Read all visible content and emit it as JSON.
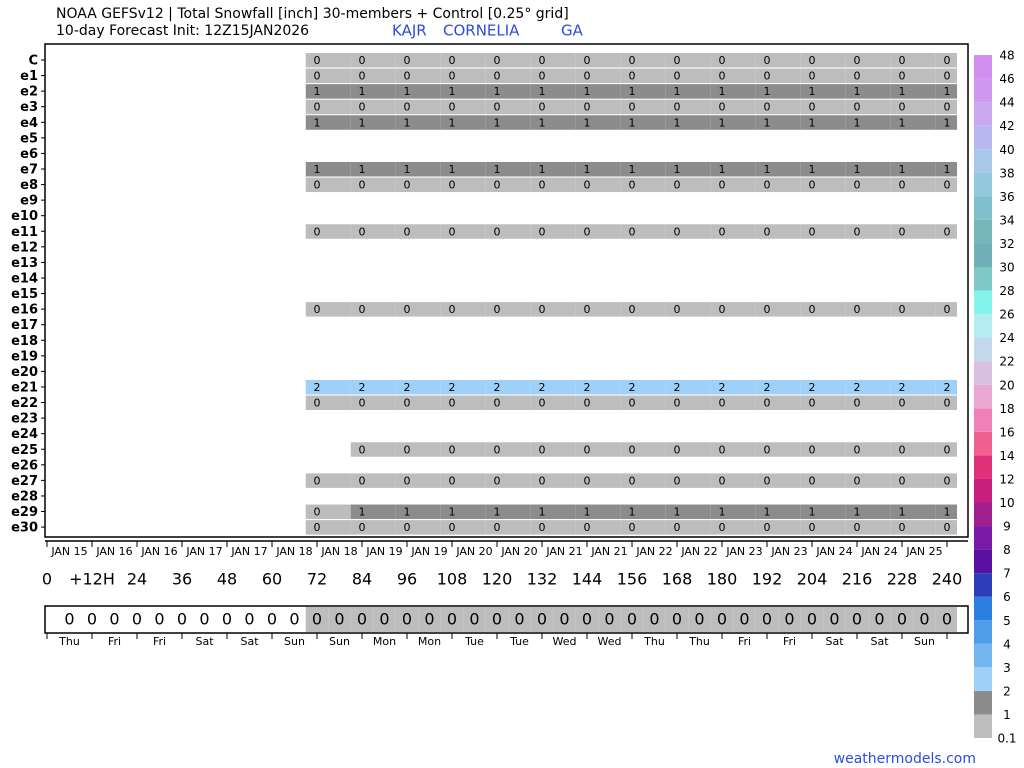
{
  "chart_data": {
    "type": "heatmap",
    "title": "NOAA GEFSv12 | Total Snowfall [inch]  30-members + Control [0.25° grid]",
    "subtitle": "10-day Forecast Init: 12Z15JAN2026",
    "station": "KAJR",
    "location": "CORNELIA",
    "state": "GA",
    "xlim": [
      0,
      246
    ],
    "xticks": [
      0,
      {
        "value": 12,
        "label": "+12H"
      },
      24,
      36,
      48,
      60,
      72,
      84,
      96,
      108,
      120,
      132,
      144,
      156,
      168,
      180,
      192,
      204,
      216,
      228,
      240
    ],
    "x": [
      72,
      84,
      96,
      108,
      120,
      132,
      144,
      156,
      168,
      180,
      192,
      204,
      216,
      228,
      240
    ],
    "date_labels": [
      "JAN 15",
      "JAN 16",
      "JAN 16",
      "JAN 17",
      "JAN 17",
      "JAN 18",
      "JAN 18",
      "JAN 19",
      "JAN 19",
      "JAN 20",
      "JAN 20",
      "JAN 21",
      "JAN 21",
      "JAN 22",
      "JAN 22",
      "JAN 23",
      "JAN 23",
      "JAN 24",
      "JAN 24",
      "JAN 25"
    ],
    "weekday_labels": [
      "Thu",
      "Fri",
      "Fri",
      "Sat",
      "Sat",
      "Sun",
      "Sun",
      "Mon",
      "Mon",
      "Tue",
      "Tue",
      "Wed",
      "Wed",
      "Thu",
      "Thu",
      "Fri",
      "Fri",
      "Sat",
      "Sat",
      "Sun"
    ],
    "series": [
      {
        "name": "C",
        "values": [
          0.3,
          0.3,
          0.3,
          0.3,
          0.3,
          0.3,
          0.3,
          0.3,
          0.3,
          0.3,
          0.3,
          0.3,
          0.3,
          0.3,
          0.3
        ],
        "value_labels": [
          "0",
          "0",
          "0",
          "0",
          "0",
          "0",
          "0",
          "0",
          "0",
          "0",
          "0",
          "0",
          "0",
          "0",
          "0"
        ]
      },
      {
        "name": "e1",
        "values": [
          0.3,
          0.3,
          0.3,
          0.3,
          0.3,
          0.3,
          0.3,
          0.3,
          0.3,
          0.3,
          0.3,
          0.3,
          0.3,
          0.3,
          0.3
        ],
        "value_labels": [
          "0",
          "0",
          "0",
          "0",
          "0",
          "0",
          "0",
          "0",
          "0",
          "0",
          "0",
          "0",
          "0",
          "0",
          "0"
        ]
      },
      {
        "name": "e2",
        "values": [
          1,
          1,
          1,
          1,
          1,
          1,
          1,
          1,
          1,
          1,
          1,
          1,
          1,
          1,
          1
        ]
      },
      {
        "name": "e3",
        "values": [
          0.3,
          0.3,
          0.3,
          0.3,
          0.3,
          0.3,
          0.3,
          0.3,
          0.3,
          0.3,
          0.3,
          0.3,
          0.3,
          0.3,
          0.3
        ],
        "value_labels": [
          "0",
          "0",
          "0",
          "0",
          "0",
          "0",
          "0",
          "0",
          "0",
          "0",
          "0",
          "0",
          "0",
          "0",
          "0"
        ]
      },
      {
        "name": "e4",
        "values": [
          1,
          1,
          1,
          1,
          1,
          1,
          1,
          1,
          1,
          1,
          1,
          1,
          1,
          1,
          1
        ]
      },
      {
        "name": "e5",
        "values": [
          null,
          null,
          null,
          null,
          null,
          null,
          null,
          null,
          null,
          null,
          null,
          null,
          null,
          null,
          null
        ]
      },
      {
        "name": "e6",
        "values": [
          null,
          null,
          null,
          null,
          null,
          null,
          null,
          null,
          null,
          null,
          null,
          null,
          null,
          null,
          null
        ]
      },
      {
        "name": "e7",
        "values": [
          1,
          1,
          1,
          1,
          1,
          1,
          1,
          1,
          1,
          1,
          1,
          1,
          1,
          1,
          1
        ]
      },
      {
        "name": "e8",
        "values": [
          0.3,
          0.3,
          0.3,
          0.3,
          0.3,
          0.3,
          0.3,
          0.3,
          0.3,
          0.3,
          0.3,
          0.3,
          0.3,
          0.3,
          0.3
        ],
        "value_labels": [
          "0",
          "0",
          "0",
          "0",
          "0",
          "0",
          "0",
          "0",
          "0",
          "0",
          "0",
          "0",
          "0",
          "0",
          "0"
        ]
      },
      {
        "name": "e9",
        "values": [
          null,
          null,
          null,
          null,
          null,
          null,
          null,
          null,
          null,
          null,
          null,
          null,
          null,
          null,
          null
        ]
      },
      {
        "name": "e10",
        "values": [
          null,
          null,
          null,
          null,
          null,
          null,
          null,
          null,
          null,
          null,
          null,
          null,
          null,
          null,
          null
        ]
      },
      {
        "name": "e11",
        "values": [
          0.3,
          0.3,
          0.3,
          0.3,
          0.3,
          0.3,
          0.3,
          0.3,
          0.3,
          0.3,
          0.3,
          0.3,
          0.3,
          0.3,
          0.3
        ],
        "value_labels": [
          "0",
          "0",
          "0",
          "0",
          "0",
          "0",
          "0",
          "0",
          "0",
          "0",
          "0",
          "0",
          "0",
          "0",
          "0"
        ]
      },
      {
        "name": "e12",
        "values": [
          null,
          null,
          null,
          null,
          null,
          null,
          null,
          null,
          null,
          null,
          null,
          null,
          null,
          null,
          null
        ]
      },
      {
        "name": "e13",
        "values": [
          null,
          null,
          null,
          null,
          null,
          null,
          null,
          null,
          null,
          null,
          null,
          null,
          null,
          null,
          null
        ]
      },
      {
        "name": "e14",
        "values": [
          null,
          null,
          null,
          null,
          null,
          null,
          null,
          null,
          null,
          null,
          null,
          null,
          null,
          null,
          null
        ]
      },
      {
        "name": "e15",
        "values": [
          null,
          null,
          null,
          null,
          null,
          null,
          null,
          null,
          null,
          null,
          null,
          null,
          null,
          null,
          null
        ]
      },
      {
        "name": "e16",
        "values": [
          0.3,
          0.3,
          0.3,
          0.3,
          0.3,
          0.3,
          0.3,
          0.3,
          0.3,
          0.3,
          0.3,
          0.3,
          0.3,
          0.3,
          0.3
        ],
        "value_labels": [
          "0",
          "0",
          "0",
          "0",
          "0",
          "0",
          "0",
          "0",
          "0",
          "0",
          "0",
          "0",
          "0",
          "0",
          "0"
        ]
      },
      {
        "name": "e17",
        "values": [
          null,
          null,
          null,
          null,
          null,
          null,
          null,
          null,
          null,
          null,
          null,
          null,
          null,
          null,
          null
        ]
      },
      {
        "name": "e18",
        "values": [
          null,
          null,
          null,
          null,
          null,
          null,
          null,
          null,
          null,
          null,
          null,
          null,
          null,
          null,
          null
        ]
      },
      {
        "name": "e19",
        "values": [
          null,
          null,
          null,
          null,
          null,
          null,
          null,
          null,
          null,
          null,
          null,
          null,
          null,
          null,
          null
        ]
      },
      {
        "name": "e20",
        "values": [
          null,
          null,
          null,
          null,
          null,
          null,
          null,
          null,
          null,
          null,
          null,
          null,
          null,
          null,
          null
        ]
      },
      {
        "name": "e21",
        "values": [
          2,
          2,
          2,
          2,
          2,
          2,
          2,
          2,
          2,
          2,
          2,
          2,
          2,
          2,
          2
        ]
      },
      {
        "name": "e22",
        "values": [
          0.3,
          0.3,
          0.3,
          0.3,
          0.3,
          0.3,
          0.3,
          0.3,
          0.3,
          0.3,
          0.3,
          0.3,
          0.3,
          0.3,
          0.3
        ],
        "value_labels": [
          "0",
          "0",
          "0",
          "0",
          "0",
          "0",
          "0",
          "0",
          "0",
          "0",
          "0",
          "0",
          "0",
          "0",
          "0"
        ]
      },
      {
        "name": "e23",
        "values": [
          null,
          null,
          null,
          null,
          null,
          null,
          null,
          null,
          null,
          null,
          null,
          null,
          null,
          null,
          null
        ]
      },
      {
        "name": "e24",
        "values": [
          null,
          null,
          null,
          null,
          null,
          null,
          null,
          null,
          null,
          null,
          null,
          null,
          null,
          null,
          null
        ]
      },
      {
        "name": "e25",
        "values": [
          null,
          0.3,
          0.3,
          0.3,
          0.3,
          0.3,
          0.3,
          0.3,
          0.3,
          0.3,
          0.3,
          0.3,
          0.3,
          0.3,
          0.3
        ],
        "value_labels": [
          null,
          "0",
          "0",
          "0",
          "0",
          "0",
          "0",
          "0",
          "0",
          "0",
          "0",
          "0",
          "0",
          "0",
          "0"
        ]
      },
      {
        "name": "e26",
        "values": [
          null,
          null,
          null,
          null,
          null,
          null,
          null,
          null,
          null,
          null,
          null,
          null,
          null,
          null,
          null
        ]
      },
      {
        "name": "e27",
        "values": [
          0.3,
          0.3,
          0.3,
          0.3,
          0.3,
          0.3,
          0.3,
          0.3,
          0.3,
          0.3,
          0.3,
          0.3,
          0.3,
          0.3,
          0.3
        ],
        "value_labels": [
          "0",
          "0",
          "0",
          "0",
          "0",
          "0",
          "0",
          "0",
          "0",
          "0",
          "0",
          "0",
          "0",
          "0",
          "0"
        ]
      },
      {
        "name": "e28",
        "values": [
          null,
          null,
          null,
          null,
          null,
          null,
          null,
          null,
          null,
          null,
          null,
          null,
          null,
          null,
          null
        ]
      },
      {
        "name": "e29",
        "values": [
          0.3,
          1,
          1,
          1,
          1,
          1,
          1,
          1,
          1,
          1,
          1,
          1,
          1,
          1,
          1
        ],
        "value_labels": [
          "0",
          "1",
          "1",
          "1",
          "1",
          "1",
          "1",
          "1",
          "1",
          "1",
          "1",
          "1",
          "1",
          "1",
          "1"
        ]
      },
      {
        "name": "e30",
        "values": [
          0.3,
          0.3,
          0.3,
          0.3,
          0.3,
          0.3,
          0.3,
          0.3,
          0.3,
          0.3,
          0.3,
          0.3,
          0.3,
          0.3,
          0.3
        ],
        "value_labels": [
          "0",
          "0",
          "0",
          "0",
          "0",
          "0",
          "0",
          "0",
          "0",
          "0",
          "0",
          "0",
          "0",
          "0",
          "0"
        ]
      }
    ],
    "mean": {
      "x": [
        6,
        12,
        18,
        24,
        30,
        36,
        42,
        48,
        54,
        60,
        66,
        72,
        78,
        84,
        90,
        96,
        102,
        108,
        114,
        120,
        126,
        132,
        138,
        144,
        150,
        156,
        162,
        168,
        174,
        180,
        186,
        192,
        198,
        204,
        210,
        216,
        222,
        228,
        234,
        240
      ],
      "values": [
        0,
        0,
        0,
        0,
        0,
        0,
        0,
        0,
        0,
        0,
        0,
        0.3,
        0.3,
        0.3,
        0.3,
        0.3,
        0.3,
        0.3,
        0.3,
        0.3,
        0.3,
        0.3,
        0.3,
        0.3,
        0.3,
        0.3,
        0.3,
        0.3,
        0.3,
        0.3,
        0.3,
        0.3,
        0.3,
        0.3,
        0.3,
        0.3,
        0.3,
        0.3,
        0.3,
        0.3
      ],
      "value_labels": [
        "0",
        "0",
        "0",
        "0",
        "0",
        "0",
        "0",
        "0",
        "0",
        "0",
        "0",
        "0",
        "0",
        "0",
        "0",
        "0",
        "0",
        "0",
        "0",
        "0",
        "0",
        "0",
        "0",
        "0",
        "0",
        "0",
        "0",
        "0",
        "0",
        "0",
        "0",
        "0",
        "0",
        "0",
        "0",
        "0",
        "0",
        "0",
        "0",
        "0"
      ]
    },
    "colorbar": {
      "levels": [
        0.1,
        1,
        2,
        3,
        4,
        5,
        6,
        7,
        8,
        9,
        10,
        12,
        14,
        16,
        18,
        20,
        22,
        24,
        26,
        28,
        30,
        32,
        34,
        36,
        38,
        40,
        42,
        44,
        46,
        48
      ],
      "colors": [
        "#bdbdbd",
        "#8c8c8c",
        "#9fd0f7",
        "#74b6f0",
        "#4f9ce8",
        "#2a7fe0",
        "#2a3fb8",
        "#5a10a0",
        "#7a1aa8",
        "#a0208f",
        "#c81e7d",
        "#e0307a",
        "#f06090",
        "#f080b8",
        "#eaa8d2",
        "#d8c0e0",
        "#c4d8ee",
        "#b4ecf2",
        "#84f4ec",
        "#80c8c8",
        "#70b0b8",
        "#74b8bc",
        "#80c0cc",
        "#94c8dc",
        "#a8c8ea",
        "#b8b8f0",
        "#c8a8f0",
        "#d098f0",
        "#d090f0"
      ]
    },
    "source": "weathermodels.com"
  }
}
